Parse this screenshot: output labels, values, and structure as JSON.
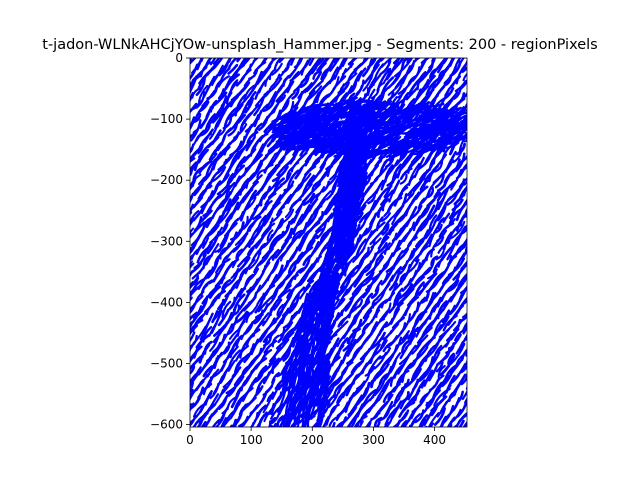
{
  "chart_data": {
    "type": "line",
    "title": "t-jadon-WLNkAHCjYOw-unsplash_Hammer.jpg - Segments: 200 - regionPixels",
    "xlabel": "",
    "ylabel": "",
    "xlim": [
      0,
      453
    ],
    "ylim": [
      -604,
      0
    ],
    "x_ticks": [
      0,
      100,
      200,
      300,
      400
    ],
    "y_ticks": [
      0,
      -100,
      -200,
      -300,
      -400,
      -500,
      -600
    ],
    "x_tick_labels": [
      "0",
      "100",
      "200",
      "300",
      "400"
    ],
    "y_tick_labels": [
      "0",
      "−100",
      "−200",
      "−300",
      "−400",
      "−500",
      "−600"
    ],
    "grid": false,
    "legend": "none",
    "stroke_color": "#0000ff",
    "background_stroke_angle_deg": -55,
    "hammer_head_band": {
      "x": [
        150,
        450
      ],
      "y_center": -115,
      "y_half_height": 45
    },
    "hammer_handle_center_line": [
      [
        275,
        -95
      ],
      [
        265,
        -200
      ],
      [
        250,
        -300
      ],
      [
        200,
        -450
      ],
      [
        180,
        -600
      ]
    ],
    "num_segments": 200
  }
}
